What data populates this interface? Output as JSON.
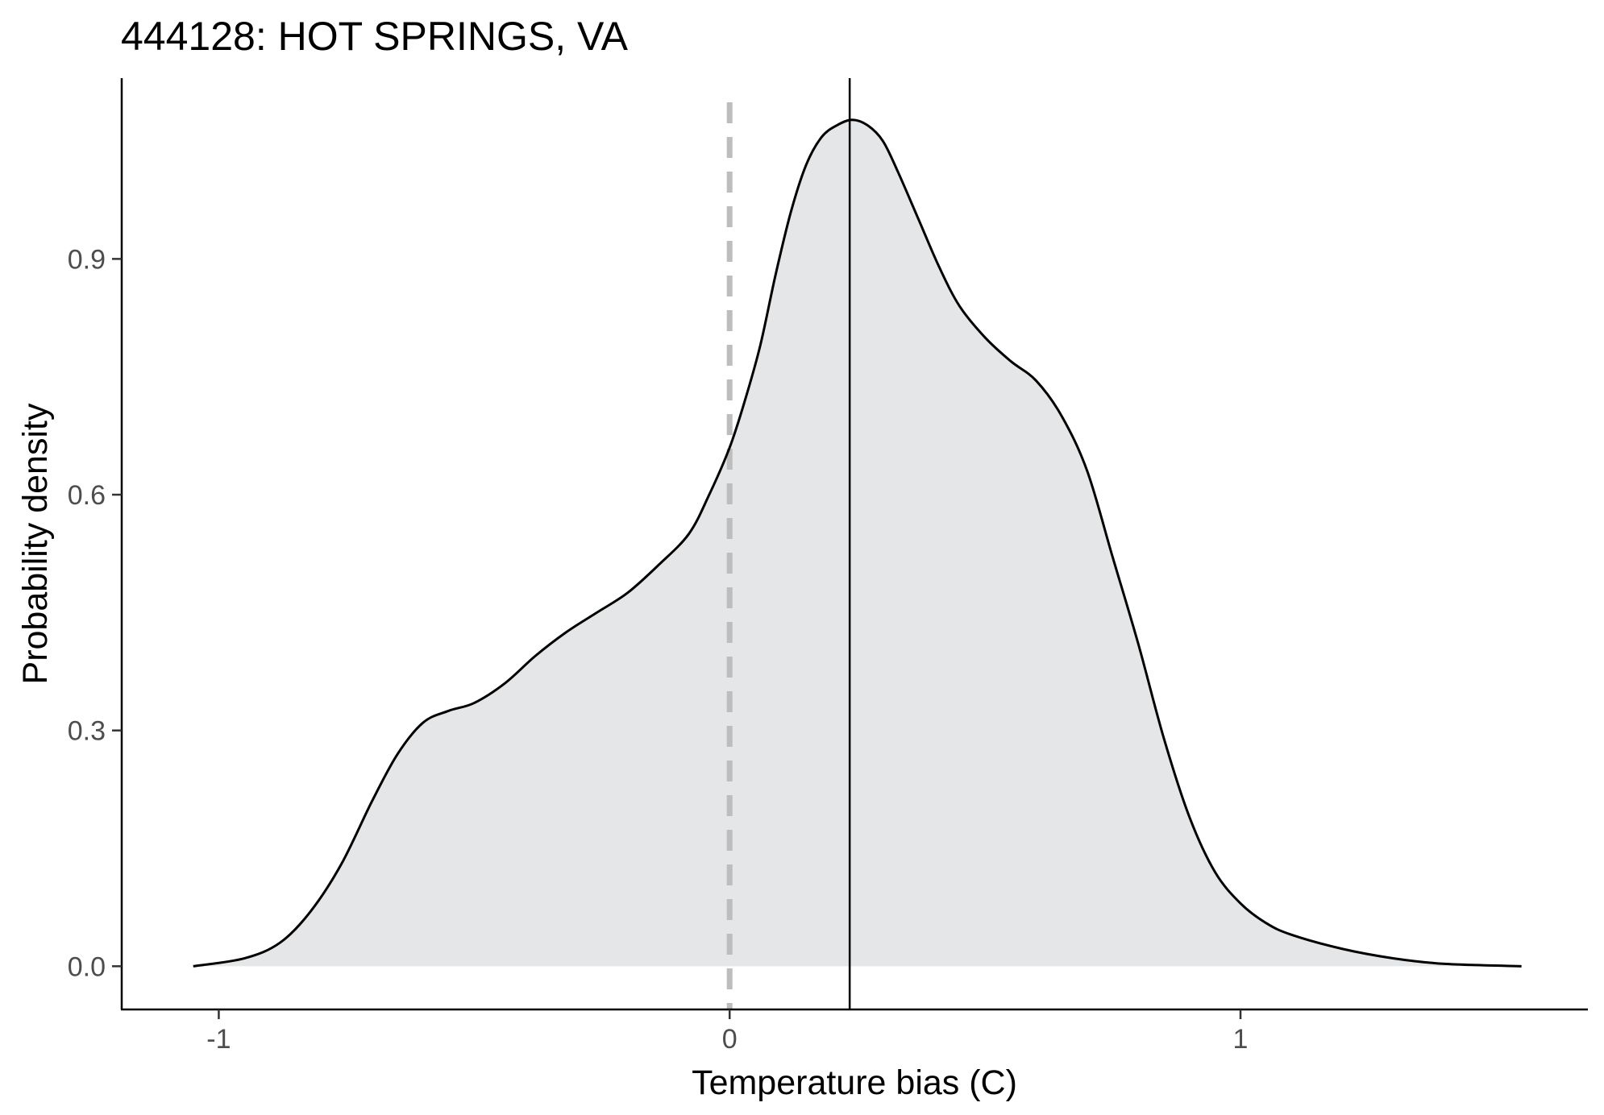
{
  "chart_data": {
    "type": "area",
    "title": "444128: HOT SPRINGS, VA",
    "xlabel": "Temperature bias (C)",
    "ylabel": "Probability density",
    "xlim": [
      -1.19,
      1.68
    ],
    "ylim": [
      -0.055,
      1.13
    ],
    "x_ticks": [
      -1,
      0,
      1
    ],
    "x_tick_labels": [
      "-1",
      "0",
      "1"
    ],
    "y_ticks": [
      0.0,
      0.3,
      0.6,
      0.9
    ],
    "y_tick_labels": [
      "0.0",
      "0.3",
      "0.6",
      "0.9"
    ],
    "grid": false,
    "legend": "none",
    "fill_color": "#e5e6e7",
    "line_color": "#000000",
    "reference_lines": [
      {
        "x": 0,
        "style": "dashed",
        "color": "#bdbdbd"
      },
      {
        "x": 0.235,
        "style": "solid",
        "color": "#000000"
      }
    ],
    "series": [
      {
        "x": [
          -1.05,
          -0.95,
          -0.88,
          -0.82,
          -0.76,
          -0.7,
          -0.65,
          -0.6,
          -0.55,
          -0.5,
          -0.44,
          -0.38,
          -0.32,
          -0.26,
          -0.2,
          -0.14,
          -0.08,
          -0.04,
          0.0,
          0.03,
          0.06,
          0.09,
          0.12,
          0.15,
          0.18,
          0.21,
          0.24,
          0.27,
          0.3,
          0.33,
          0.37,
          0.41,
          0.45,
          0.5,
          0.55,
          0.6,
          0.65,
          0.7,
          0.75,
          0.8,
          0.85,
          0.9,
          0.95,
          1.0,
          1.05,
          1.1,
          1.2,
          1.3,
          1.4,
          1.55
        ],
        "y": [
          0.0,
          0.01,
          0.03,
          0.07,
          0.13,
          0.21,
          0.27,
          0.31,
          0.325,
          0.335,
          0.36,
          0.395,
          0.425,
          0.45,
          0.475,
          0.51,
          0.55,
          0.6,
          0.66,
          0.72,
          0.79,
          0.88,
          0.96,
          1.02,
          1.055,
          1.07,
          1.077,
          1.07,
          1.05,
          1.01,
          0.95,
          0.89,
          0.84,
          0.8,
          0.77,
          0.745,
          0.7,
          0.63,
          0.52,
          0.41,
          0.29,
          0.19,
          0.12,
          0.08,
          0.055,
          0.04,
          0.022,
          0.01,
          0.003,
          0.0
        ]
      }
    ]
  }
}
